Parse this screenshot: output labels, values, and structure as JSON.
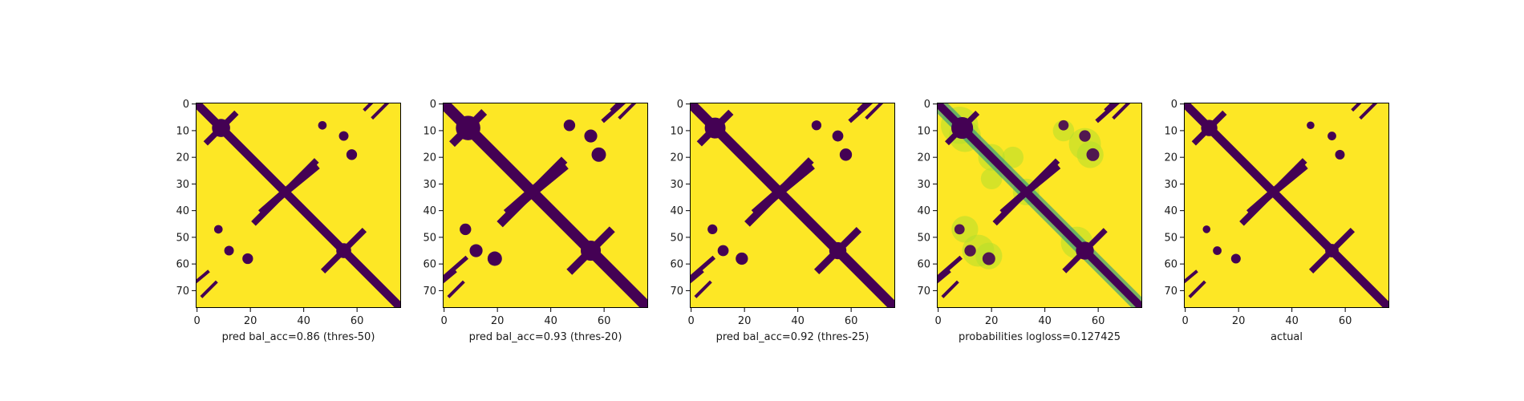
{
  "figure": {
    "colors": {
      "background": "#fde725",
      "mark": "#440154",
      "mid": "#21918c",
      "light": "#b5de2b"
    }
  },
  "chart_data": [
    {
      "type": "heatmap",
      "title": "",
      "xlabel": "pred bal_acc=0.86 (thres-50)",
      "ylabel": "",
      "xlim": [
        0,
        76
      ],
      "ylim": [
        76,
        0
      ],
      "xticks": [
        "0",
        "20",
        "40",
        "60"
      ],
      "yticks": [
        "0",
        "10",
        "20",
        "30",
        "40",
        "50",
        "60",
        "70"
      ],
      "grid": false,
      "colormap": "viridis"
    },
    {
      "type": "heatmap",
      "title": "",
      "xlabel": "pred bal_acc=0.93 (thres-20)",
      "ylabel": "",
      "xlim": [
        0,
        76
      ],
      "ylim": [
        76,
        0
      ],
      "xticks": [
        "0",
        "20",
        "40",
        "60"
      ],
      "yticks": [
        "0",
        "10",
        "20",
        "30",
        "40",
        "50",
        "60",
        "70"
      ],
      "grid": false,
      "colormap": "viridis"
    },
    {
      "type": "heatmap",
      "title": "",
      "xlabel": "pred bal_acc=0.92 (thres-25)",
      "ylabel": "",
      "xlim": [
        0,
        76
      ],
      "ylim": [
        76,
        0
      ],
      "xticks": [
        "0",
        "20",
        "40",
        "60"
      ],
      "yticks": [
        "0",
        "10",
        "20",
        "30",
        "40",
        "50",
        "60",
        "70"
      ],
      "grid": false,
      "colormap": "viridis"
    },
    {
      "type": "heatmap",
      "title": "",
      "xlabel": "probabilities logloss=0.127425",
      "ylabel": "",
      "xlim": [
        0,
        76
      ],
      "ylim": [
        76,
        0
      ],
      "xticks": [
        "0",
        "20",
        "40",
        "60"
      ],
      "yticks": [
        "0",
        "10",
        "20",
        "30",
        "40",
        "50",
        "60",
        "70"
      ],
      "grid": false,
      "colormap": "viridis"
    },
    {
      "type": "heatmap",
      "title": "",
      "xlabel": "actual",
      "ylabel": "",
      "xlim": [
        0,
        76
      ],
      "ylim": [
        76,
        0
      ],
      "xticks": [
        "0",
        "20",
        "40",
        "60"
      ],
      "yticks": [
        "0",
        "10",
        "20",
        "30",
        "40",
        "50",
        "60",
        "70"
      ],
      "grid": false,
      "colormap": "viridis"
    }
  ]
}
